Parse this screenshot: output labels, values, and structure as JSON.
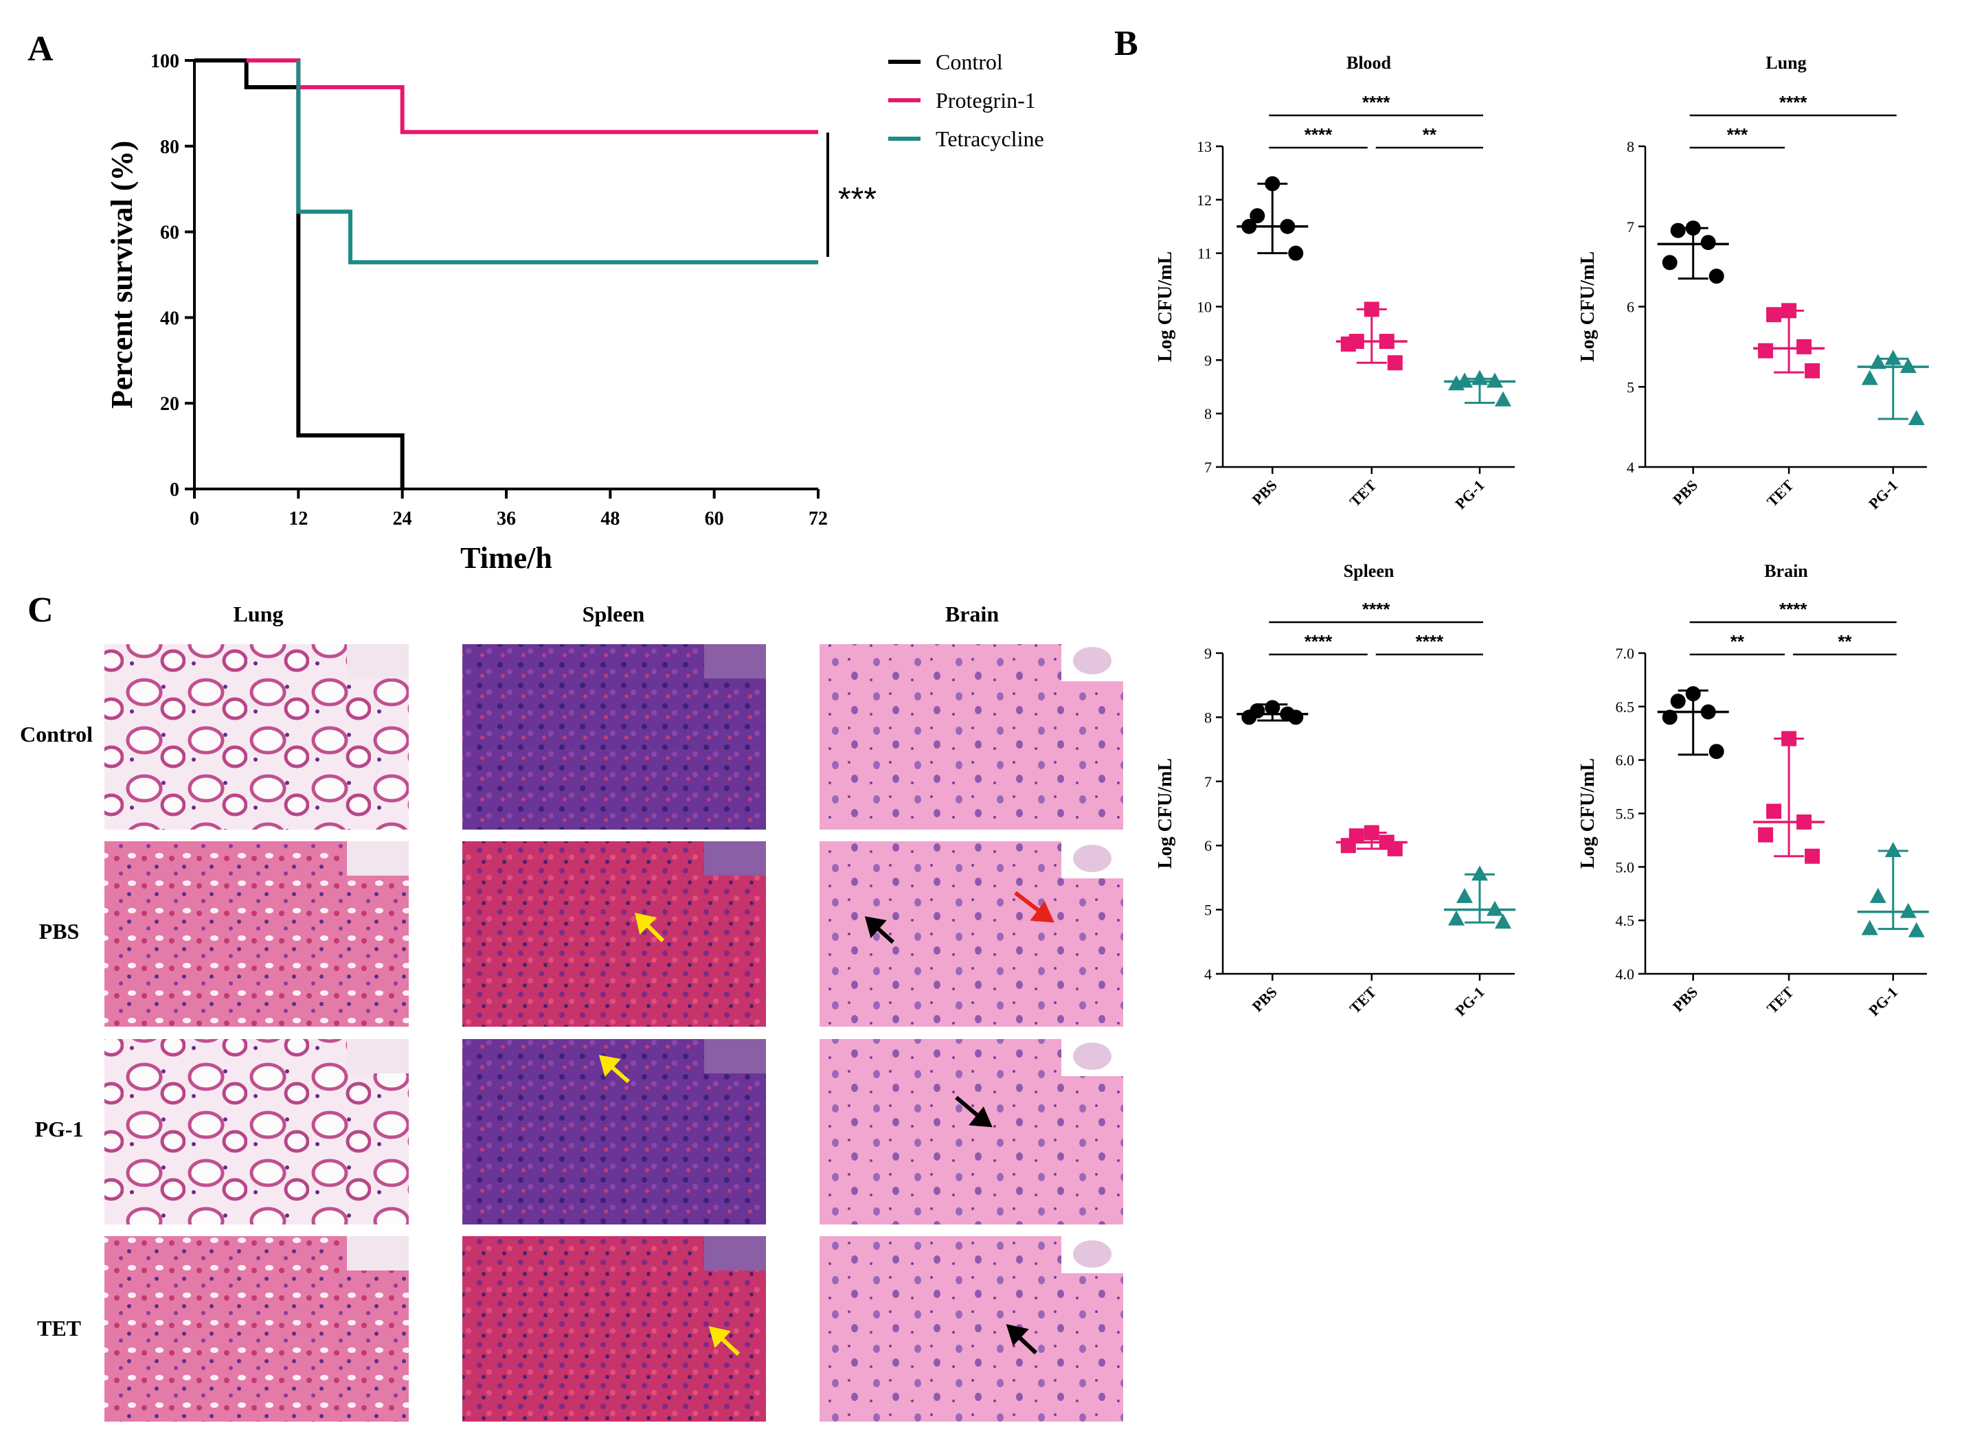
{
  "colors": {
    "control": "#000000",
    "pg1": "#e8176f",
    "tet": "#1e8b84"
  },
  "panels": {
    "a": "A",
    "b": "B",
    "c": "C"
  },
  "survival": {
    "chart_data": {
      "type": "line",
      "xlabel": "Time/h",
      "ylabel": "Percent survival (%)",
      "xlim": [
        0,
        72
      ],
      "ylim": [
        0,
        100
      ],
      "xticks": [
        "0",
        "12",
        "24",
        "36",
        "48",
        "60",
        "72"
      ],
      "yticks": [
        "0",
        "20",
        "40",
        "60",
        "80",
        "100"
      ],
      "legend_position": "top-right",
      "series": [
        {
          "name": "Control",
          "color": "#000000",
          "x": [
            0,
            6,
            6,
            12,
            12,
            24,
            24
          ],
          "y": [
            100,
            100,
            93.75,
            93.75,
            12.5,
            12.5,
            0
          ]
        },
        {
          "name": "Protegrin-1",
          "color": "#e8176f",
          "x": [
            6,
            12,
            12,
            24,
            24,
            72
          ],
          "y": [
            100,
            100,
            93.75,
            93.75,
            83.3,
            83.3
          ]
        },
        {
          "name": "Tetracycline",
          "color": "#1e8b84",
          "x": [
            12,
            12,
            18,
            18,
            72
          ],
          "y": [
            100,
            64.7,
            64.7,
            52.9,
            52.9
          ]
        }
      ],
      "significance": "***"
    }
  },
  "cfu": {
    "chart_data": [
      {
        "type": "scatter",
        "title": "Blood",
        "ylabel": "Log CFU/mL",
        "categories": [
          "PBS",
          "TET",
          "PG-1"
        ],
        "ylim": [
          7,
          13
        ],
        "yticks": [
          "7",
          "8",
          "9",
          "10",
          "11",
          "12",
          "13"
        ],
        "series": [
          {
            "points": [
              12.3,
              11.7,
              11.5,
              11.5,
              11.0
            ],
            "median": 11.5,
            "range": [
              11.0,
              12.3
            ]
          },
          {
            "points": [
              9.95,
              9.35,
              9.35,
              9.3,
              8.95
            ],
            "median": 9.35,
            "range": [
              8.95,
              9.95
            ]
          },
          {
            "points": [
              8.65,
              8.6,
              8.6,
              8.55,
              8.25
            ],
            "median": 8.6,
            "range": [
              8.2,
              8.65
            ]
          }
        ],
        "brackets": [
          {
            "from": 0,
            "to": 2,
            "label": "****"
          },
          {
            "from": 0,
            "to": 1,
            "label": "****"
          },
          {
            "from": 1,
            "to": 2,
            "label": "**"
          }
        ]
      },
      {
        "type": "scatter",
        "title": "Lung",
        "ylabel": "Log CFU/mL",
        "categories": [
          "PBS",
          "TET",
          "PG-1"
        ],
        "ylim": [
          4,
          8
        ],
        "yticks": [
          "4",
          "5",
          "6",
          "7",
          "8"
        ],
        "series": [
          {
            "points": [
              6.98,
              6.95,
              6.8,
              6.55,
              6.38
            ],
            "median": 6.78,
            "range": [
              6.35,
              6.98
            ]
          },
          {
            "points": [
              5.95,
              5.9,
              5.5,
              5.45,
              5.2
            ],
            "median": 5.48,
            "range": [
              5.18,
              5.95
            ]
          },
          {
            "points": [
              5.35,
              5.3,
              5.25,
              5.1,
              4.6
            ],
            "median": 5.25,
            "range": [
              4.6,
              5.35
            ]
          }
        ],
        "brackets": [
          {
            "from": 0,
            "to": 2,
            "label": "****"
          },
          {
            "from": 0,
            "to": 1,
            "label": "***"
          }
        ]
      },
      {
        "type": "scatter",
        "title": "Spleen",
        "ylabel": "Log CFU/mL",
        "categories": [
          "PBS",
          "TET",
          "PG-1"
        ],
        "ylim": [
          4,
          9
        ],
        "yticks": [
          "4",
          "5",
          "6",
          "7",
          "8",
          "9"
        ],
        "series": [
          {
            "points": [
              8.15,
              8.1,
              8.05,
              8.0,
              8.0
            ],
            "median": 8.05,
            "range": [
              7.95,
              8.2
            ]
          },
          {
            "points": [
              6.2,
              6.15,
              6.05,
              6.0,
              5.95
            ],
            "median": 6.05,
            "range": [
              5.95,
              6.2
            ]
          },
          {
            "points": [
              5.55,
              5.2,
              5.0,
              4.85,
              4.8
            ],
            "median": 5.0,
            "range": [
              4.8,
              5.55
            ]
          }
        ],
        "brackets": [
          {
            "from": 0,
            "to": 2,
            "label": "****"
          },
          {
            "from": 0,
            "to": 1,
            "label": "****"
          },
          {
            "from": 1,
            "to": 2,
            "label": "****"
          }
        ]
      },
      {
        "type": "scatter",
        "title": "Brain",
        "ylabel": "Log CFU/mL",
        "categories": [
          "PBS",
          "TET",
          "PG-1"
        ],
        "ylim": [
          4.0,
          7.0
        ],
        "yticks": [
          "4.0",
          "4.5",
          "5.0",
          "5.5",
          "6.0",
          "6.5",
          "7.0"
        ],
        "series": [
          {
            "points": [
              6.62,
              6.55,
              6.45,
              6.4,
              6.08
            ],
            "median": 6.45,
            "range": [
              6.05,
              6.65
            ]
          },
          {
            "points": [
              6.2,
              5.52,
              5.42,
              5.3,
              5.1
            ],
            "median": 5.42,
            "range": [
              5.1,
              6.2
            ]
          },
          {
            "points": [
              5.15,
              4.72,
              4.58,
              4.42,
              4.4
            ],
            "median": 4.58,
            "range": [
              4.42,
              5.15
            ]
          }
        ],
        "brackets": [
          {
            "from": 0,
            "to": 2,
            "label": "****"
          },
          {
            "from": 0,
            "to": 1,
            "label": "**"
          },
          {
            "from": 1,
            "to": 2,
            "label": "**"
          }
        ]
      }
    ]
  },
  "histology": {
    "columns": [
      "Lung",
      "Spleen",
      "Brain"
    ],
    "rows": [
      "Control",
      "PBS",
      "PG-1",
      "TET"
    ]
  }
}
